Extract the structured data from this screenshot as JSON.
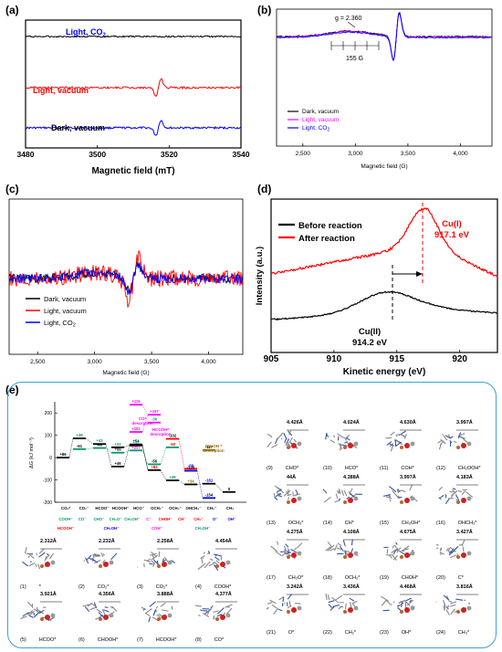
{
  "panel_labels": {
    "a": "(a)",
    "b": "(b)",
    "c": "(c)",
    "d": "(d)",
    "e": "(e)"
  },
  "chart_data": [
    {
      "id": "a",
      "type": "line",
      "xlabel": "Magnetic field (mT)",
      "xlim": [
        3480,
        3540
      ],
      "xticks": [
        3480,
        3500,
        3520,
        3540
      ],
      "series": [
        {
          "name": "Light, CO",
          "sub": "2",
          "color": "#0000ff",
          "offset": 2.0
        },
        {
          "name": "Light, vacuum",
          "color": "#ff0000",
          "offset": 1.0
        },
        {
          "name": "Dark, vacuum",
          "color": "#000000",
          "offset": 0.0
        }
      ]
    },
    {
      "id": "b",
      "type": "line",
      "xlabel": "Magnetic field (G)",
      "xlim": [
        2250,
        4300
      ],
      "xticks": [
        2500,
        3000,
        3500,
        4000
      ],
      "xticklabels": [
        "2,500",
        "3,000",
        "3,500",
        "4,000"
      ],
      "annotations": {
        "g_value": "g = 2.360",
        "spacing": "155 G"
      },
      "series": [
        {
          "name": "Dark, vacuum",
          "color": "#000000"
        },
        {
          "name": "Light, vacuum",
          "color": "#ff00ff"
        },
        {
          "name": "Light, CO",
          "sub": "2",
          "color": "#0000ff"
        }
      ]
    },
    {
      "id": "c",
      "type": "line",
      "xlabel": "Magnetic field (G)",
      "xlim": [
        2250,
        4300
      ],
      "xticks": [
        2500,
        3000,
        3500,
        4000
      ],
      "xticklabels": [
        "2,500",
        "3,000",
        "3,500",
        "4,000"
      ],
      "series": [
        {
          "name": "Dark, vacuum",
          "color": "#000000"
        },
        {
          "name": "Light, vacuum",
          "color": "#ff0000"
        },
        {
          "name": "Light, CO",
          "sub": "2",
          "color": "#0000ff"
        }
      ]
    },
    {
      "id": "d",
      "type": "line",
      "xlabel": "Kinetic energy (eV)",
      "ylabel": "Intensity (a.u.)",
      "xlim": [
        905,
        923
      ],
      "xticks": [
        905,
        910,
        915,
        920
      ],
      "series": [
        {
          "name": "Before reaction",
          "color": "#000000"
        },
        {
          "name": "After reaction",
          "color": "#ff0000"
        }
      ],
      "annotations": {
        "cu1_label": "Cu(I)",
        "cu1_value": "917.1 eV",
        "cu2_label": "Cu(II)",
        "cu2_value": "914.2 eV"
      }
    },
    {
      "id": "e",
      "type": "line",
      "ylabel": "ΔG (kJ mol⁻¹)",
      "ylim": [
        -200,
        250
      ],
      "yticks": [
        -200,
        -100,
        0,
        100,
        200
      ],
      "step_labels": [
        {
          "v": "+86",
          "c": "#000000"
        },
        {
          "v": "+38",
          "c": "#009966"
        },
        {
          "v": "-61",
          "c": "#000000"
        },
        {
          "v": "+43",
          "c": "#009966"
        },
        {
          "v": "-40",
          "c": "#000000"
        },
        {
          "v": "+46",
          "c": "#000000"
        },
        {
          "v": "+22",
          "c": "#009966"
        },
        {
          "v": "+59",
          "c": "#000000"
        },
        {
          "v": "+54",
          "c": "#000000"
        },
        {
          "v": "+32",
          "c": "#009966"
        },
        {
          "v": "+237",
          "c": "#ff00ff"
        },
        {
          "v": "+115",
          "c": "#ff00ff"
        },
        {
          "v": "+192",
          "c": "#ff00ff"
        },
        {
          "v": "+157",
          "c": "#ff00ff"
        },
        {
          "v": "-30",
          "c": "#009966"
        },
        {
          "v": "-56",
          "c": "#000000"
        },
        {
          "v": "+84",
          "c": "#ff0000"
        },
        {
          "v": "-102",
          "c": "#000000"
        },
        {
          "v": "+46",
          "c": "#009966"
        },
        {
          "v": "-50",
          "c": "#ff0000"
        },
        {
          "v": "-59",
          "c": "#0000ff"
        },
        {
          "v": "-120",
          "c": "#000000"
        },
        {
          "v": "+34",
          "c": "#996600"
        },
        {
          "v": "-117",
          "c": "#000000"
        },
        {
          "v": "-181",
          "c": "#0000ff"
        },
        {
          "v": "-154",
          "c": "#000000"
        },
        {
          "v": "0",
          "c": "#000000"
        }
      ],
      "desorption_labels": [
        {
          "text": "CO*",
          "sub": "desorption",
          "c": "#ff00ff"
        },
        {
          "text": "HCOOH*",
          "sub": "desorption",
          "c": "#ff00ff"
        },
        {
          "text": "CH₃OH *",
          "sub": "desorption",
          "c": "#996600"
        }
      ],
      "x_row1": [
        {
          "t": "CO₂*",
          "c": "#000000"
        },
        {
          "t": "CO₂⁻",
          "c": "#000000"
        },
        {
          "t": "HCOO⁻",
          "c": "#000000"
        },
        {
          "t": "HCOOH⁻",
          "c": "#000000"
        },
        {
          "t": "HCO⁻",
          "c": "#000000"
        },
        {
          "t": "OCH₂⁻",
          "c": "#000000"
        },
        {
          "t": "OCH₃⁻",
          "c": "#000000"
        },
        {
          "t": "OHCH₃⁻",
          "c": "#000000"
        },
        {
          "t": "CH₃⁻",
          "c": "#000000"
        },
        {
          "t": "CH₄",
          "c": "#000000"
        }
      ],
      "x_row2": [
        {
          "t": "COOH⁻",
          "c": "#009966"
        },
        {
          "t": "CO⁻",
          "c": "#009966"
        },
        {
          "t": "CHO⁻",
          "c": "#009966"
        },
        {
          "t": "CH₂O⁻",
          "c": "#009966"
        },
        {
          "t": "CH₂OH⁻",
          "c": "#009966"
        },
        {
          "t": "C⁻",
          "c": "#ff00ff"
        },
        {
          "t": "CHOH⁻",
          "c": "#ff0000"
        },
        {
          "t": "CH⁻",
          "c": "#ff0000"
        },
        {
          "t": "CH₂⁻",
          "c": "#ff0000"
        },
        {
          "t": "O⁻",
          "c": "#0000ff"
        },
        {
          "t": "OH⁻",
          "c": "#0000ff"
        }
      ],
      "x_row3": [
        {
          "t": "HCOOH⁻",
          "c": "#ff0000"
        },
        {
          "t": "CH₂OH⁻",
          "c": "#0000ff"
        },
        {
          "t": "COH⁻",
          "c": "#ff00ff"
        },
        {
          "t": "CH₃OH⁻",
          "c": "#009966"
        }
      ]
    }
  ],
  "structures": [
    {
      "num": "(1)",
      "label": "*",
      "dist": "2.312Å"
    },
    {
      "num": "(2)",
      "label": "CO₂*",
      "dist": "2.232Å"
    },
    {
      "num": "(3)",
      "label": "CO₂*",
      "dist": "2.258Å"
    },
    {
      "num": "(4)",
      "label": "COOH*",
      "dist": "4.454Å"
    },
    {
      "num": "(5)",
      "label": "HCOO*",
      "dist": "3.921Å"
    },
    {
      "num": "(6)",
      "label": "CHOOH*",
      "dist": "4.356Å"
    },
    {
      "num": "(7)",
      "label": "HCOOH*",
      "dist": "3.888Å"
    },
    {
      "num": "(8)",
      "label": "CO*",
      "dist": "4.377Å"
    },
    {
      "num": "(9)",
      "label": "CHO*",
      "dist": "4.426Å"
    },
    {
      "num": "(10)",
      "label": "HCO*",
      "dist": "4.024Å"
    },
    {
      "num": "(11)",
      "label": "COH*",
      "dist": "4.630Å"
    },
    {
      "num": "(12)",
      "label": "CH₂OOH*",
      "dist": "3.997Å"
    },
    {
      "num": "(13)",
      "label": "OCH₃*",
      "dist": "44Å"
    },
    {
      "num": "(14)",
      "label": "CH*",
      "dist": "4.388Å"
    },
    {
      "num": "(15)",
      "label": "CH₃OH*",
      "dist": "3.997Å"
    },
    {
      "num": "(16)",
      "label": "OHCH₃*",
      "dist": "4.183Å"
    },
    {
      "num": "(17)",
      "label": "CH₂O*",
      "dist": "4.275Å"
    },
    {
      "num": "(18)",
      "label": "OCH₂*",
      "dist": "4.108Å"
    },
    {
      "num": "(19)",
      "label": "CHOH*",
      "dist": "4.675Å"
    },
    {
      "num": "(20)",
      "label": "C*",
      "dist": "3.427Å"
    },
    {
      "num": "(21)",
      "label": "O*",
      "dist": "3.242Å"
    },
    {
      "num": "(22)",
      "label": "CH₂*",
      "dist": "3.436Å"
    },
    {
      "num": "(23)",
      "label": "OH*",
      "dist": "4.468Å"
    },
    {
      "num": "(24)",
      "label": "CH₃*",
      "dist": "3.816Å"
    }
  ]
}
